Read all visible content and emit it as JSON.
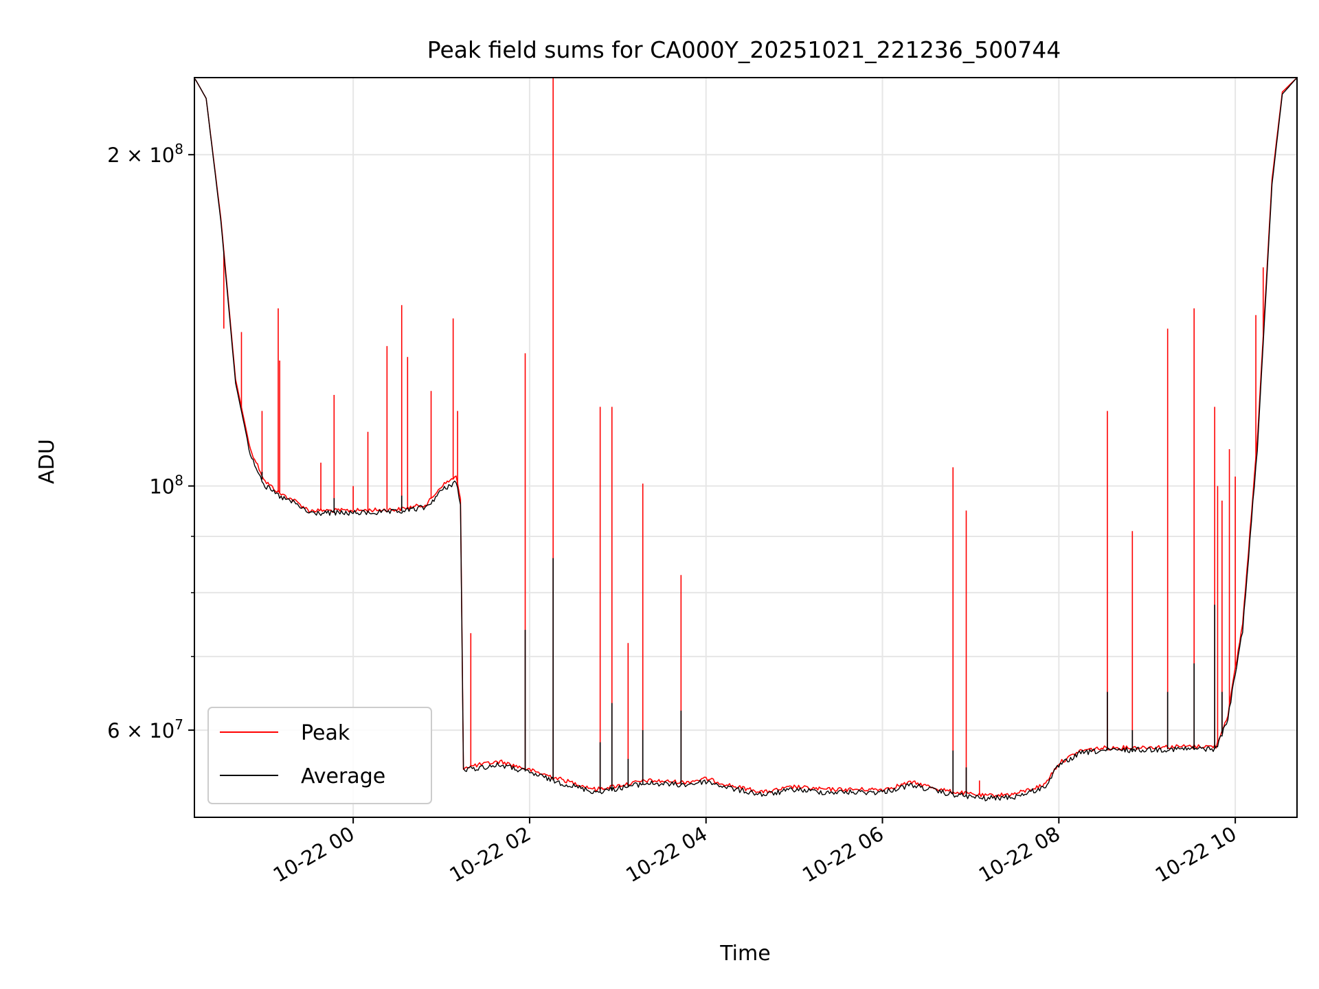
{
  "chart_data": {
    "type": "line",
    "title": "Peak field sums for CA000Y_20251021_221236_500744",
    "xlabel": "Time",
    "ylabel": "ADU",
    "yscale": "log",
    "ylim": [
      50000000,
      235000000
    ],
    "xlim": [
      "2025-10-21 22:12",
      "2025-10-22 10:42"
    ],
    "grid": true,
    "legend_position": "lower-left",
    "x_ticks": [
      "10-22 00",
      "10-22 02",
      "10-22 04",
      "10-22 06",
      "10-22 08",
      "10-22 10"
    ],
    "y_ticks": [
      {
        "label_base": "2 × 10",
        "label_exp": "8",
        "value": 200000000
      },
      {
        "label_base": "10",
        "label_exp": "8",
        "value": 100000000
      },
      {
        "label_base": "6 × 10",
        "label_exp": "7",
        "value": 60000000
      }
    ],
    "series": [
      {
        "name": "Peak",
        "color": "#ff0000",
        "points": [
          [
            "2025-10-21 22:12",
            235000000
          ],
          [
            "2025-10-21 22:20",
            225000000
          ],
          [
            "2025-10-21 22:30",
            175000000
          ],
          [
            "2025-10-21 22:40",
            125000000
          ],
          [
            "2025-10-21 22:50",
            108000000
          ],
          [
            "2025-10-21 23:00",
            101000000
          ],
          [
            "2025-10-21 23:10",
            98500000
          ],
          [
            "2025-10-21 23:20",
            97000000
          ],
          [
            "2025-10-21 23:30",
            95000000
          ],
          [
            "2025-10-22 00:00",
            95000000
          ],
          [
            "2025-10-22 00:30",
            95200000
          ],
          [
            "2025-10-22 00:50",
            96200000
          ],
          [
            "2025-10-22 01:00",
            100000000
          ],
          [
            "2025-10-22 01:10",
            102000000
          ],
          [
            "2025-10-22 01:13",
            97000000
          ],
          [
            "2025-10-22 01:15",
            55500000
          ],
          [
            "2025-10-22 01:40",
            56200000
          ],
          [
            "2025-10-22 02:00",
            55200000
          ],
          [
            "2025-10-22 02:20",
            54200000
          ],
          [
            "2025-10-22 02:45",
            53000000
          ],
          [
            "2025-10-22 03:20",
            54000000
          ],
          [
            "2025-10-22 03:45",
            53800000
          ],
          [
            "2025-10-22 04:00",
            54200000
          ],
          [
            "2025-10-22 04:20",
            53300000
          ],
          [
            "2025-10-22 04:40",
            52700000
          ],
          [
            "2025-10-22 05:00",
            53300000
          ],
          [
            "2025-10-22 05:20",
            53000000
          ],
          [
            "2025-10-22 05:40",
            53000000
          ],
          [
            "2025-10-22 06:00",
            53000000
          ],
          [
            "2025-10-22 06:20",
            53800000
          ],
          [
            "2025-10-22 06:45",
            52800000
          ],
          [
            "2025-10-22 07:10",
            52300000
          ],
          [
            "2025-10-22 07:30",
            52500000
          ],
          [
            "2025-10-22 07:50",
            53500000
          ],
          [
            "2025-10-22 08:00",
            56000000
          ],
          [
            "2025-10-22 08:15",
            57500000
          ],
          [
            "2025-10-22 08:30",
            57800000
          ],
          [
            "2025-10-22 09:00",
            57900000
          ],
          [
            "2025-10-22 09:30",
            58000000
          ],
          [
            "2025-10-22 09:47",
            58000000
          ],
          [
            "2025-10-22 09:55",
            62000000
          ],
          [
            "2025-10-22 10:05",
            75000000
          ],
          [
            "2025-10-22 10:15",
            110000000
          ],
          [
            "2025-10-22 10:25",
            190000000
          ],
          [
            "2025-10-22 10:32",
            228000000
          ],
          [
            "2025-10-22 10:42",
            235000000
          ]
        ],
        "spikes": [
          [
            "2025-10-21 22:32",
            139000000
          ],
          [
            "2025-10-21 22:44",
            138000000
          ],
          [
            "2025-10-21 22:58",
            117000000
          ],
          [
            "2025-10-21 23:09",
            145000000
          ],
          [
            "2025-10-21 23:10",
            130000000
          ],
          [
            "2025-10-21 23:38",
            105000000
          ],
          [
            "2025-10-21 23:47",
            121000000
          ],
          [
            "2025-10-21 24:00",
            100000000
          ],
          [
            "2025-10-22 00:10",
            112000000
          ],
          [
            "2025-10-22 00:23",
            134000000
          ],
          [
            "2025-10-22 00:33",
            146000000
          ],
          [
            "2025-10-22 00:37",
            131000000
          ],
          [
            "2025-10-22 00:53",
            122000000
          ],
          [
            "2025-10-22 01:08",
            142000000
          ],
          [
            "2025-10-22 01:11",
            117000000
          ],
          [
            "2025-10-22 01:20",
            73500000
          ],
          [
            "2025-10-22 01:57",
            132000000
          ],
          [
            "2025-10-22 02:16",
            235000000
          ],
          [
            "2025-10-22 02:48",
            118000000
          ],
          [
            "2025-10-22 02:56",
            118000000
          ],
          [
            "2025-10-22 03:07",
            72000000
          ],
          [
            "2025-10-22 03:17",
            100500000
          ],
          [
            "2025-10-22 03:43",
            83000000
          ],
          [
            "2025-10-22 06:48",
            104000000
          ],
          [
            "2025-10-22 06:57",
            95000000
          ],
          [
            "2025-10-22 07:06",
            54000000
          ],
          [
            "2025-10-22 08:33",
            117000000
          ],
          [
            "2025-10-22 08:50",
            91000000
          ],
          [
            "2025-10-22 09:14",
            139000000
          ],
          [
            "2025-10-22 09:32",
            145000000
          ],
          [
            "2025-10-22 09:46",
            118000000
          ],
          [
            "2025-10-22 09:48",
            100000000
          ],
          [
            "2025-10-22 09:51",
            97000000
          ],
          [
            "2025-10-22 09:56",
            108000000
          ],
          [
            "2025-10-22 10:00",
            102000000
          ],
          [
            "2025-10-22 10:14",
            143000000
          ],
          [
            "2025-10-22 10:19",
            158000000
          ]
        ]
      },
      {
        "name": "Average",
        "color": "#000000",
        "points": [
          [
            "2025-10-21 22:12",
            235000000
          ],
          [
            "2025-10-21 22:20",
            225000000
          ],
          [
            "2025-10-21 22:30",
            174000000
          ],
          [
            "2025-10-21 22:40",
            124000000
          ],
          [
            "2025-10-21 22:50",
            107000000
          ],
          [
            "2025-10-21 23:00",
            100000000
          ],
          [
            "2025-10-21 23:10",
            97800000
          ],
          [
            "2025-10-21 23:20",
            96500000
          ],
          [
            "2025-10-21 23:30",
            94500000
          ],
          [
            "2025-10-22 00:00",
            94500000
          ],
          [
            "2025-10-22 00:30",
            94700000
          ],
          [
            "2025-10-22 00:50",
            95700000
          ],
          [
            "2025-10-22 01:00",
            99000000
          ],
          [
            "2025-10-22 01:10",
            101000000
          ],
          [
            "2025-10-22 01:13",
            96000000
          ],
          [
            "2025-10-22 01:15",
            55200000
          ],
          [
            "2025-10-22 01:40",
            55800000
          ],
          [
            "2025-10-22 02:00",
            54900000
          ],
          [
            "2025-10-22 02:20",
            53800000
          ],
          [
            "2025-10-22 02:45",
            52700000
          ],
          [
            "2025-10-22 03:20",
            53700000
          ],
          [
            "2025-10-22 03:45",
            53500000
          ],
          [
            "2025-10-22 04:00",
            53900000
          ],
          [
            "2025-10-22 04:20",
            53000000
          ],
          [
            "2025-10-22 04:40",
            52400000
          ],
          [
            "2025-10-22 05:00",
            53000000
          ],
          [
            "2025-10-22 05:20",
            52700000
          ],
          [
            "2025-10-22 05:40",
            52700000
          ],
          [
            "2025-10-22 06:00",
            52700000
          ],
          [
            "2025-10-22 06:20",
            53500000
          ],
          [
            "2025-10-22 06:45",
            52500000
          ],
          [
            "2025-10-22 07:10",
            52000000
          ],
          [
            "2025-10-22 07:30",
            52200000
          ],
          [
            "2025-10-22 07:50",
            53200000
          ],
          [
            "2025-10-22 08:00",
            55700000
          ],
          [
            "2025-10-22 08:15",
            57200000
          ],
          [
            "2025-10-22 08:30",
            57500000
          ],
          [
            "2025-10-22 09:00",
            57600000
          ],
          [
            "2025-10-22 09:30",
            57700000
          ],
          [
            "2025-10-22 09:47",
            57700000
          ],
          [
            "2025-10-22 09:55",
            61500000
          ],
          [
            "2025-10-22 10:05",
            74000000
          ],
          [
            "2025-10-22 10:15",
            108000000
          ],
          [
            "2025-10-22 10:25",
            188000000
          ],
          [
            "2025-10-22 10:32",
            227000000
          ],
          [
            "2025-10-22 10:42",
            235000000
          ]
        ],
        "spikes": [
          [
            "2025-10-21 22:58",
            103000000
          ],
          [
            "2025-10-21 23:47",
            97500000
          ],
          [
            "2025-10-22 00:33",
            98000000
          ],
          [
            "2025-10-22 01:57",
            74000000
          ],
          [
            "2025-10-22 02:16",
            86000000
          ],
          [
            "2025-10-22 02:48",
            58500000
          ],
          [
            "2025-10-22 02:56",
            63500000
          ],
          [
            "2025-10-22 03:07",
            56500000
          ],
          [
            "2025-10-22 03:17",
            60000000
          ],
          [
            "2025-10-22 03:43",
            62500000
          ],
          [
            "2025-10-22 06:48",
            57500000
          ],
          [
            "2025-10-22 06:57",
            55500000
          ],
          [
            "2025-10-22 08:33",
            65000000
          ],
          [
            "2025-10-22 08:50",
            60000000
          ],
          [
            "2025-10-22 09:14",
            65000000
          ],
          [
            "2025-10-22 09:32",
            69000000
          ],
          [
            "2025-10-22 09:46",
            78000000
          ],
          [
            "2025-10-22 09:51",
            65000000
          ]
        ]
      }
    ]
  }
}
